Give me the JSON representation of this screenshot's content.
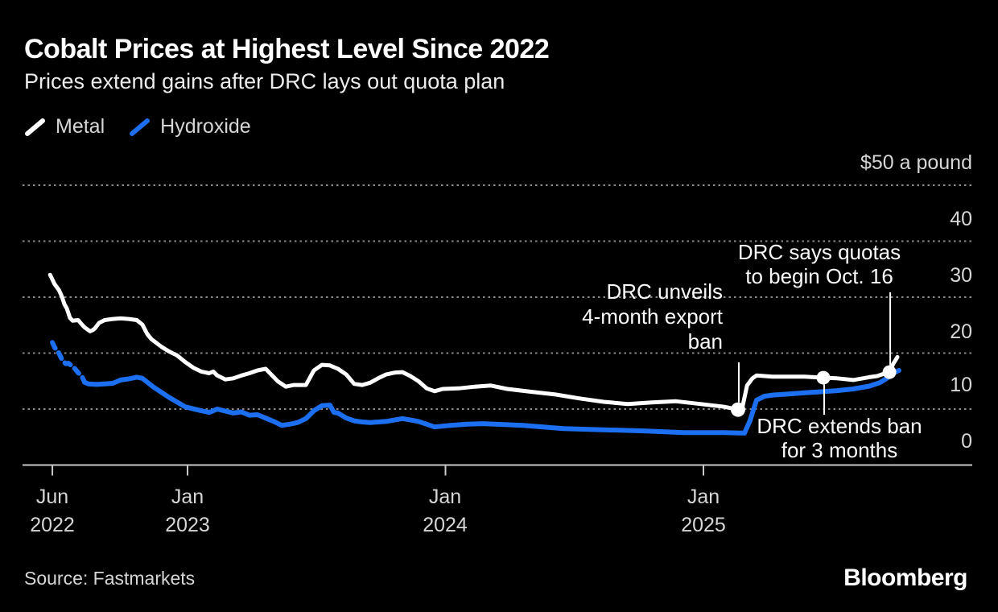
{
  "header": {
    "title": "Cobalt Prices at Highest Level Since 2022",
    "subtitle": "Prices extend gains after DRC lays out quota plan"
  },
  "legend": [
    {
      "label": "Metal",
      "color": "#ffffff"
    },
    {
      "label": "Hydroxide",
      "color": "#1d6ff2"
    }
  ],
  "footer": {
    "source": "Source: Fastmarkets",
    "logo": "Bloomberg"
  },
  "colors": {
    "background": "#000000",
    "metal_line": "#ffffff",
    "hydroxide_line": "#1d6ff2",
    "gridline": "#8a8a8a",
    "axis": "#c8c8c8",
    "label_text": "#d6d6d6"
  },
  "chart_data": {
    "type": "line",
    "unit_label": "$50 a pound",
    "ylim": [
      0,
      50
    ],
    "grid": "dotted-horizontal",
    "legend_position": "top-left",
    "yticks": [
      {
        "label": "$50 a pound",
        "value": 50
      },
      {
        "label": "40",
        "value": 40
      },
      {
        "label": "30",
        "value": 30
      },
      {
        "label": "20",
        "value": 20
      },
      {
        "label": "10",
        "value": 10
      },
      {
        "label": "0",
        "value": 0
      }
    ],
    "xticks": [
      {
        "month": "Jun",
        "year": "2022",
        "t": 2022.476
      },
      {
        "month": "Jan",
        "year": "2023",
        "t": 2023.0
      },
      {
        "month": "Jan",
        "year": "2024",
        "t": 2024.0
      },
      {
        "month": "Jan",
        "year": "2025",
        "t": 2025.0
      }
    ],
    "series": [
      {
        "name": "Metal",
        "color": "#ffffff",
        "width": 5,
        "points": [
          [
            2022.467,
            34.0
          ],
          [
            2022.485,
            32.3
          ],
          [
            2022.501,
            31.3
          ],
          [
            2022.513,
            30.1
          ],
          [
            2022.523,
            28.7
          ],
          [
            2022.532,
            28.0
          ],
          [
            2022.544,
            26.3
          ],
          [
            2022.554,
            25.8
          ],
          [
            2022.576,
            25.9
          ],
          [
            2022.591,
            25.1
          ],
          [
            2022.601,
            24.6
          ],
          [
            2022.61,
            24.3
          ],
          [
            2022.622,
            23.9
          ],
          [
            2022.632,
            24.1
          ],
          [
            2022.641,
            24.4
          ],
          [
            2022.657,
            25.4
          ],
          [
            2022.679,
            25.9
          ],
          [
            2022.71,
            26.1
          ],
          [
            2022.741,
            26.2
          ],
          [
            2022.772,
            26.1
          ],
          [
            2022.803,
            25.9
          ],
          [
            2022.825,
            25.1
          ],
          [
            2022.844,
            23.4
          ],
          [
            2022.86,
            22.5
          ],
          [
            2022.897,
            21.2
          ],
          [
            2022.928,
            20.3
          ],
          [
            2022.959,
            19.6
          ],
          [
            2022.991,
            18.4
          ],
          [
            2023.022,
            17.4
          ],
          [
            2023.053,
            16.7
          ],
          [
            2023.084,
            16.4
          ],
          [
            2023.1,
            16.7
          ],
          [
            2023.115,
            16.0
          ],
          [
            2023.147,
            15.3
          ],
          [
            2023.178,
            15.5
          ],
          [
            2023.209,
            16.0
          ],
          [
            2023.24,
            16.4
          ],
          [
            2023.271,
            16.9
          ],
          [
            2023.303,
            17.2
          ],
          [
            2023.349,
            15.0
          ],
          [
            2023.381,
            14.0
          ],
          [
            2023.412,
            14.3
          ],
          [
            2023.459,
            14.3
          ],
          [
            2023.49,
            16.9
          ],
          [
            2023.521,
            17.9
          ],
          [
            2023.552,
            17.8
          ],
          [
            2023.583,
            17.2
          ],
          [
            2023.615,
            16.2
          ],
          [
            2023.646,
            14.5
          ],
          [
            2023.677,
            14.3
          ],
          [
            2023.708,
            14.7
          ],
          [
            2023.739,
            15.5
          ],
          [
            2023.771,
            16.2
          ],
          [
            2023.802,
            16.5
          ],
          [
            2023.833,
            16.6
          ],
          [
            2023.864,
            15.9
          ],
          [
            2023.895,
            15.0
          ],
          [
            2023.927,
            13.7
          ],
          [
            2023.958,
            13.2
          ],
          [
            2023.989,
            13.6
          ],
          [
            2024.051,
            13.7
          ],
          [
            2024.114,
            14.0
          ],
          [
            2024.176,
            14.2
          ],
          [
            2024.239,
            13.6
          ],
          [
            2024.332,
            13.1
          ],
          [
            2024.426,
            12.6
          ],
          [
            2024.52,
            11.9
          ],
          [
            2024.613,
            11.3
          ],
          [
            2024.707,
            10.9
          ],
          [
            2024.8,
            11.2
          ],
          [
            2024.894,
            11.4
          ],
          [
            2024.988,
            10.9
          ],
          [
            2025.081,
            10.4
          ],
          [
            2025.134,
            9.9
          ],
          [
            2025.15,
            10.1
          ],
          [
            2025.169,
            14.2
          ],
          [
            2025.19,
            15.5
          ],
          [
            2025.206,
            16.0
          ],
          [
            2025.268,
            15.8
          ],
          [
            2025.331,
            15.8
          ],
          [
            2025.393,
            15.8
          ],
          [
            2025.465,
            15.6
          ],
          [
            2025.518,
            15.5
          ],
          [
            2025.581,
            15.2
          ],
          [
            2025.643,
            15.7
          ],
          [
            2025.674,
            15.9
          ],
          [
            2025.705,
            16.4
          ],
          [
            2025.721,
            16.6
          ],
          [
            2025.736,
            18.1
          ],
          [
            2025.752,
            19.3
          ]
        ]
      },
      {
        "name": "Hydroxide",
        "color": "#1d6ff2",
        "width": 6,
        "dashed_until": 2022.601,
        "points": [
          [
            2022.476,
            21.9
          ],
          [
            2022.485,
            21.0
          ],
          [
            2022.498,
            20.3
          ],
          [
            2022.516,
            18.6
          ],
          [
            2022.529,
            18.1
          ],
          [
            2022.538,
            18.2
          ],
          [
            2022.56,
            17.4
          ],
          [
            2022.576,
            16.5
          ],
          [
            2022.591,
            15.8
          ],
          [
            2022.601,
            14.8
          ],
          [
            2022.616,
            14.5
          ],
          [
            2022.647,
            14.4
          ],
          [
            2022.679,
            14.5
          ],
          [
            2022.71,
            14.6
          ],
          [
            2022.741,
            15.2
          ],
          [
            2022.772,
            15.4
          ],
          [
            2022.803,
            15.7
          ],
          [
            2022.825,
            15.5
          ],
          [
            2022.866,
            14.0
          ],
          [
            2022.928,
            12.1
          ],
          [
            2022.991,
            10.4
          ],
          [
            2023.053,
            9.7
          ],
          [
            2023.084,
            9.4
          ],
          [
            2023.115,
            10.0
          ],
          [
            2023.178,
            9.3
          ],
          [
            2023.209,
            9.5
          ],
          [
            2023.24,
            8.9
          ],
          [
            2023.271,
            9.0
          ],
          [
            2023.334,
            7.8
          ],
          [
            2023.365,
            7.1
          ],
          [
            2023.396,
            7.3
          ],
          [
            2023.427,
            7.6
          ],
          [
            2023.459,
            8.3
          ],
          [
            2023.49,
            9.7
          ],
          [
            2023.521,
            10.6
          ],
          [
            2023.552,
            10.7
          ],
          [
            2023.568,
            9.4
          ],
          [
            2023.583,
            9.3
          ],
          [
            2023.615,
            8.4
          ],
          [
            2023.646,
            7.9
          ],
          [
            2023.677,
            7.7
          ],
          [
            2023.708,
            7.6
          ],
          [
            2023.771,
            7.8
          ],
          [
            2023.833,
            8.3
          ],
          [
            2023.895,
            7.8
          ],
          [
            2023.927,
            7.3
          ],
          [
            2023.958,
            6.8
          ],
          [
            2024.02,
            7.1
          ],
          [
            2024.083,
            7.3
          ],
          [
            2024.145,
            7.4
          ],
          [
            2024.301,
            7.1
          ],
          [
            2024.457,
            6.5
          ],
          [
            2024.613,
            6.3
          ],
          [
            2024.769,
            6.1
          ],
          [
            2024.925,
            5.8
          ],
          [
            2025.081,
            5.8
          ],
          [
            2025.159,
            5.7
          ],
          [
            2025.181,
            8.0
          ],
          [
            2025.206,
            11.6
          ],
          [
            2025.237,
            12.3
          ],
          [
            2025.268,
            12.5
          ],
          [
            2025.331,
            12.7
          ],
          [
            2025.393,
            12.9
          ],
          [
            2025.455,
            13.1
          ],
          [
            2025.518,
            13.3
          ],
          [
            2025.581,
            13.6
          ],
          [
            2025.643,
            14.1
          ],
          [
            2025.683,
            14.7
          ],
          [
            2025.711,
            15.5
          ],
          [
            2025.736,
            16.4
          ],
          [
            2025.758,
            16.9
          ]
        ]
      }
    ],
    "annotations": [
      {
        "series": "Metal",
        "t": 2025.134,
        "value": 9.9,
        "text_lines": [
          "DRC unveils",
          "4-month export",
          "ban"
        ]
      },
      {
        "series": "Metal",
        "t": 2025.465,
        "value": 15.6,
        "text_lines": [
          "DRC extends ban",
          "for 3 months"
        ]
      },
      {
        "series": "Metal",
        "t": 2025.721,
        "value": 16.6,
        "text_lines": [
          "DRC says quotas",
          "to begin Oct. 16"
        ]
      }
    ]
  }
}
